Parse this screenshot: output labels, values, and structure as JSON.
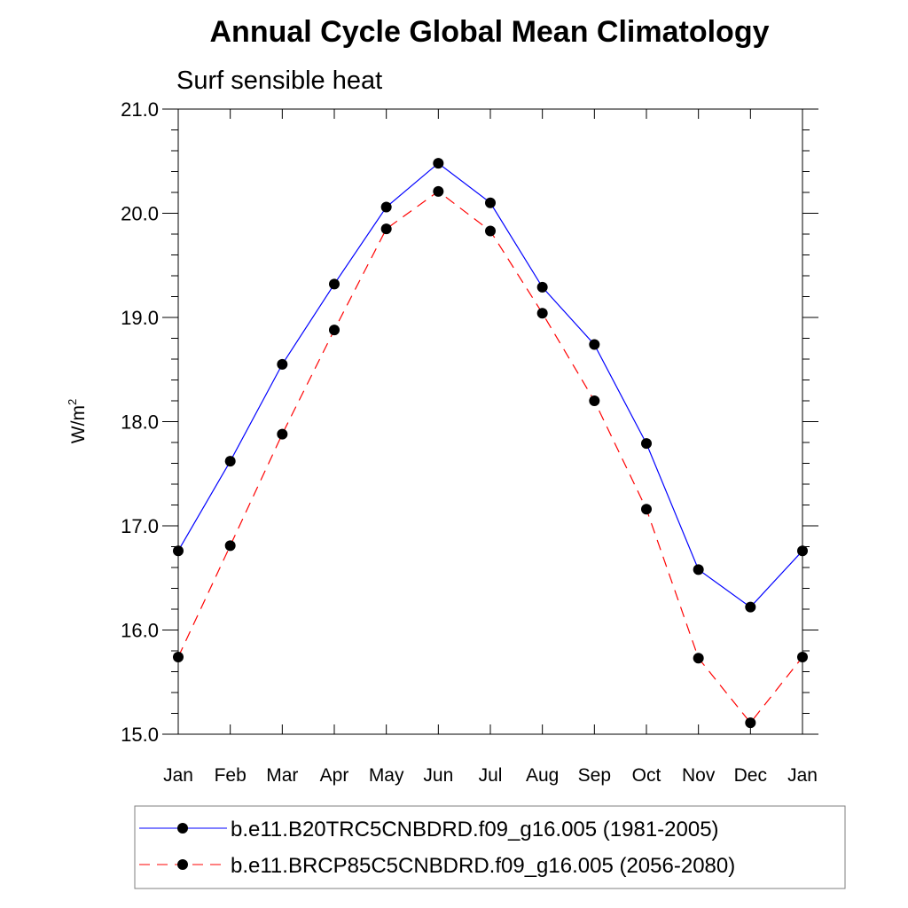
{
  "chart_data": {
    "type": "line",
    "title": "Annual Cycle Global Mean Climatology",
    "subtitle": "Surf sensible heat",
    "ylabel": "W/m",
    "ylabel_superscript": "2",
    "xlabel": "",
    "categories": [
      "Jan",
      "Feb",
      "Mar",
      "Apr",
      "May",
      "Jun",
      "Jul",
      "Aug",
      "Sep",
      "Oct",
      "Nov",
      "Dec",
      "Jan"
    ],
    "ylim": [
      15.0,
      21.0
    ],
    "yticks": [
      "15.0",
      "16.0",
      "17.0",
      "18.0",
      "19.0",
      "20.0",
      "21.0"
    ],
    "ytick_values": [
      15.0,
      16.0,
      17.0,
      18.0,
      19.0,
      20.0,
      21.0
    ],
    "grid": false,
    "legend_position": "bottom",
    "series": [
      {
        "name": "b.e11.B20TRC5CNBDRD.f09_g16.005 (1981-2005)",
        "color": "#0000ff",
        "line_style": "solid",
        "marker": "filled-circle",
        "values": [
          16.76,
          17.62,
          18.55,
          19.32,
          20.06,
          20.48,
          20.1,
          19.29,
          18.74,
          17.79,
          16.58,
          16.22,
          16.76
        ]
      },
      {
        "name": "b.e11.BRCP85C5CNBDRD.f09_g16.005 (2056-2080)",
        "color": "#ff0000",
        "line_style": "dashed",
        "marker": "filled-circle",
        "values": [
          15.74,
          16.81,
          17.88,
          18.88,
          19.85,
          20.21,
          19.83,
          19.04,
          18.2,
          17.16,
          15.73,
          15.11,
          15.74
        ]
      }
    ]
  }
}
